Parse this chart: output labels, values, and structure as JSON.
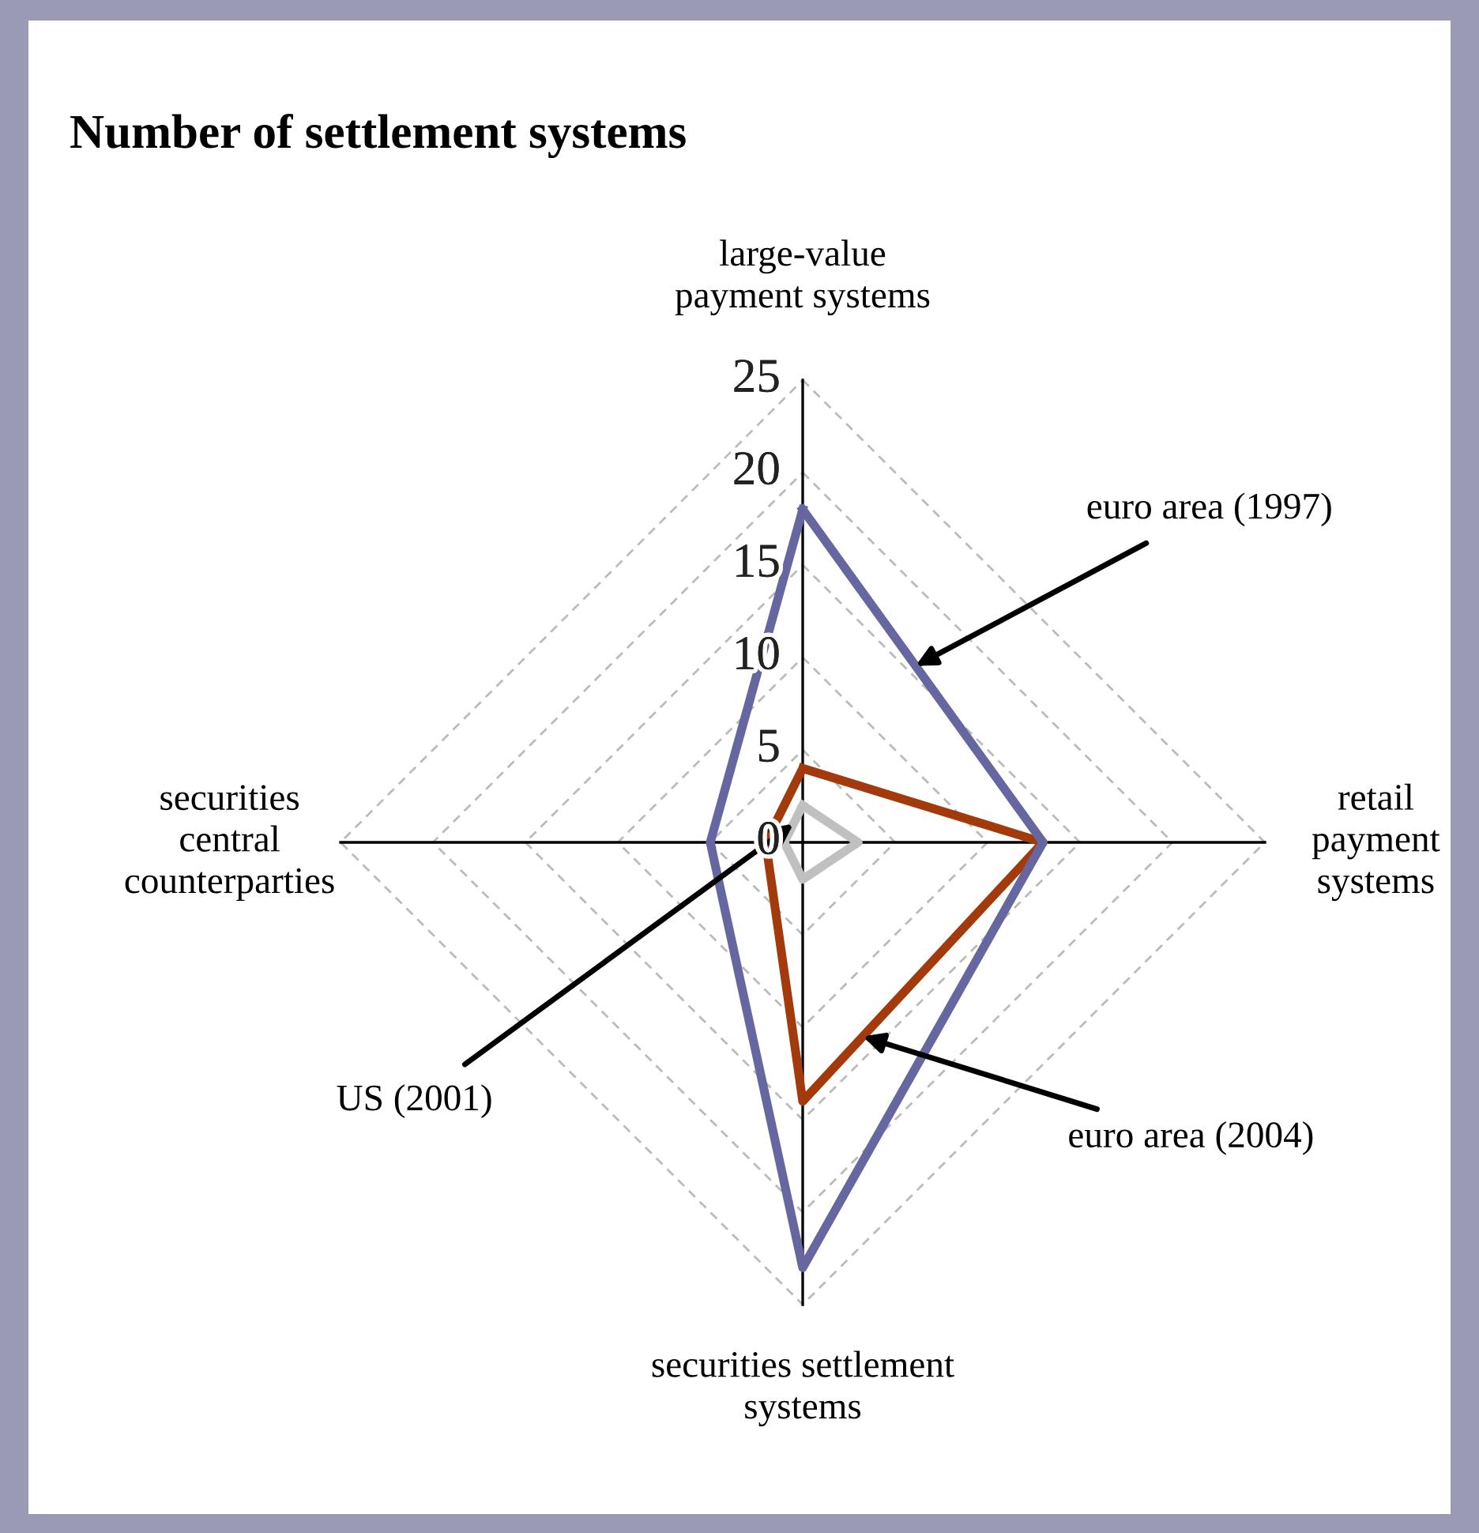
{
  "chart_data": {
    "type": "radar",
    "title": "Number of settlement systems",
    "categories": [
      "large-value\npayment systems",
      "retail\npayment\nsystems",
      "securities settlement\nsystems",
      "securities\ncentral\ncounterparties"
    ],
    "ylim": [
      0,
      25
    ],
    "yticks": [
      0,
      5,
      10,
      15,
      20,
      25
    ],
    "grid": true,
    "line_style": "solid",
    "marker": "none",
    "legend": false,
    "series": [
      {
        "name": "euro area (1997)",
        "color": "#6666a0",
        "values": [
          18,
          13,
          23,
          5
        ]
      },
      {
        "name": "euro area (2004)",
        "color": "#a33a0c",
        "values": [
          4,
          13,
          14,
          2
        ]
      },
      {
        "name": "US (2001)",
        "color": "#c0c0c0",
        "values": [
          2,
          3,
          2,
          1
        ]
      }
    ]
  }
}
